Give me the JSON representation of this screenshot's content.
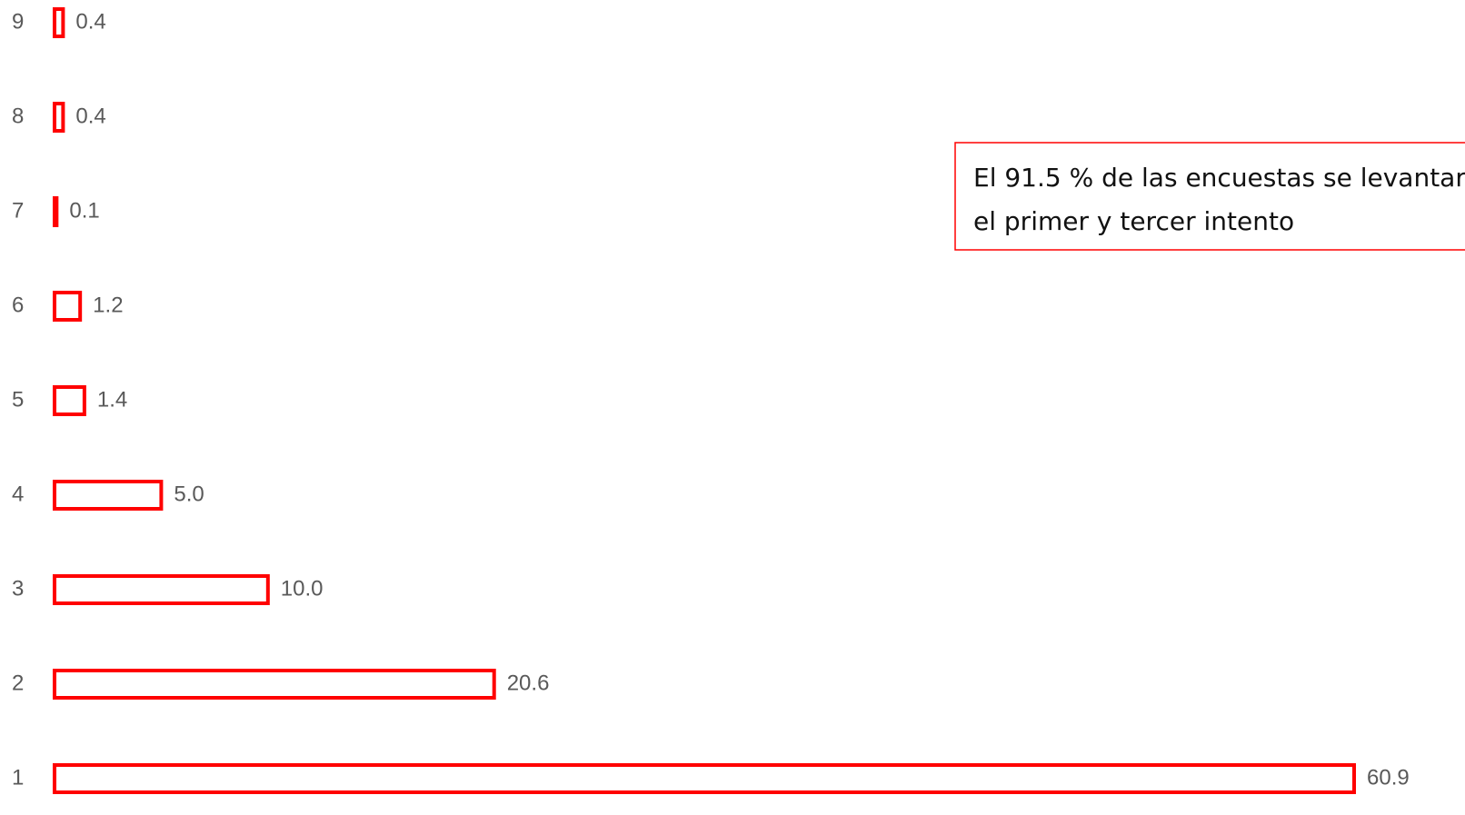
{
  "chart_data": {
    "type": "bar",
    "orientation": "horizontal",
    "categories": [
      "1",
      "2",
      "3",
      "4",
      "5",
      "6",
      "7",
      "8",
      "9"
    ],
    "values": [
      60.9,
      20.6,
      10.0,
      5.0,
      1.4,
      1.2,
      0.1,
      0.4,
      0.4
    ],
    "value_labels": [
      "60.9",
      "20.6",
      "10.0",
      "5.0",
      "1.4",
      "1.2",
      "0.1",
      "0.4",
      "0.4"
    ],
    "color": "#ff0000",
    "annotation": [
      "El 91.5 % de las encuestas se levantar",
      "el primer y tercer intento"
    ]
  }
}
